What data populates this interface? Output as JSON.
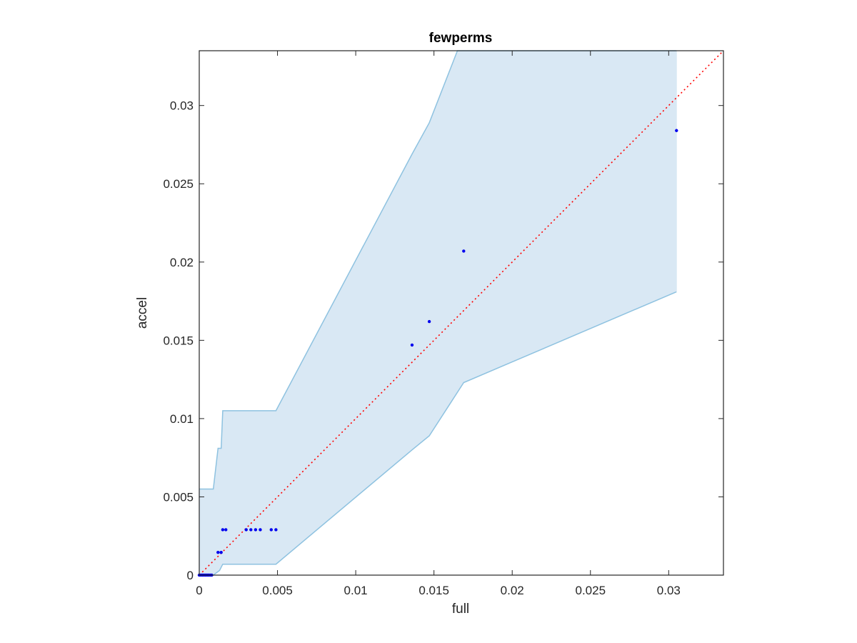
{
  "chart_data": {
    "type": "scatter",
    "title": "fewperms",
    "xlabel": "full",
    "ylabel": "accel",
    "xlim": [
      0,
      0.0335
    ],
    "ylim": [
      0,
      0.0335
    ],
    "xticks": [
      0,
      0.005,
      0.01,
      0.015,
      0.02,
      0.025,
      0.03
    ],
    "yticks": [
      0,
      0.005,
      0.01,
      0.015,
      0.02,
      0.025,
      0.03
    ],
    "xtick_labels": [
      "0",
      "0.005",
      "0.01",
      "0.015",
      "0.02",
      "0.025",
      "0.03"
    ],
    "ytick_labels": [
      "0",
      "0.005",
      "0.01",
      "0.015",
      "0.02",
      "0.025",
      "0.03"
    ],
    "grid": false,
    "points": {
      "x": [
        0,
        0.0001,
        0.0002,
        0.0003,
        0.0004,
        0.0005,
        0.0006,
        0.0007,
        0.0008,
        0.0012,
        0.0014,
        0.0015,
        0.0017,
        0.003,
        0.0033,
        0.0036,
        0.0039,
        0.0046,
        0.0049,
        0.0136,
        0.0147,
        0.0169,
        0.0305
      ],
      "y": [
        0,
        0,
        0,
        0,
        0,
        0,
        0,
        0,
        0,
        0.00145,
        0.00145,
        0.0029,
        0.0029,
        0.0029,
        0.0029,
        0.0029,
        0.0029,
        0.0029,
        0.0029,
        0.0147,
        0.0162,
        0.0207,
        0.0284
      ],
      "color": "#0000ee"
    },
    "band": {
      "upper_x": [
        0,
        0.0009,
        0.0012,
        0.0014,
        0.0015,
        0.0049,
        0.0136,
        0.0147,
        0.0165,
        0.0305
      ],
      "upper_y": [
        0.0055,
        0.0055,
        0.0081,
        0.0081,
        0.0105,
        0.0105,
        0.0269,
        0.0289,
        0.0335,
        0.0335
      ],
      "lower_x": [
        0,
        0.0009,
        0.0013,
        0.0015,
        0.0049,
        0.0136,
        0.0147,
        0.0169,
        0.0305
      ],
      "lower_y": [
        0,
        0,
        0.0003,
        0.0007,
        0.0007,
        0.008,
        0.0089,
        0.0123,
        0.0181
      ],
      "fill_color": "#d9e8f4",
      "edge_color": "#8ec2e0"
    },
    "reference_line": {
      "type": "y=x",
      "style": "dotted",
      "color": "#ff0000"
    }
  }
}
